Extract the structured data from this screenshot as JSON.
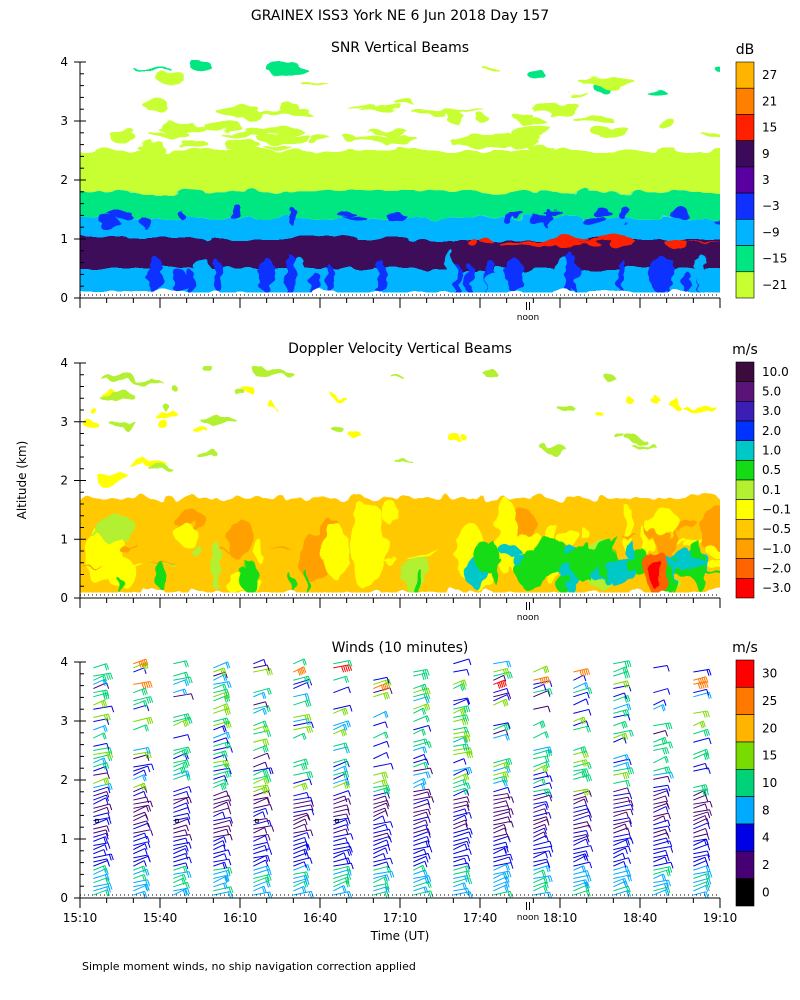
{
  "figure": {
    "title": "GRAINEX ISS3 York NE   6 Jun 2018 Day 157",
    "ylabel": "Altitude (km)",
    "xlabel": "Time (UT)",
    "footnote": "Simple moment winds, no ship navigation correction applied",
    "noon_label": "noon"
  },
  "chart_data": [
    {
      "id": "snr",
      "type": "heatmap",
      "title": "SNR Vertical Beams",
      "xlabel": "Time (UT)",
      "ylabel": "Altitude (km)",
      "xlim": [
        "15:10",
        "19:10"
      ],
      "ylim": [
        0,
        4
      ],
      "yticks": [
        "0",
        "1",
        "2",
        "3",
        "4"
      ],
      "colorbar": {
        "unit": "dB",
        "labels": [
          "27",
          "21",
          "15",
          "9",
          "3",
          "−3",
          "−9",
          "−15",
          "−21"
        ],
        "colors": [
          "#ffb400",
          "#ff8000",
          "#ff2000",
          "#3c0a5a",
          "#5a00a0",
          "#1030ff",
          "#00b4ff",
          "#00e680",
          "#c8ff32"
        ]
      },
      "layers": [
        {
          "range_km": [
            0.1,
            0.5
          ],
          "color": "#00b4ff",
          "note": "near-surface"
        },
        {
          "range_km": [
            0.3,
            1.0
          ],
          "color": "#3c0a5a",
          "note": "strong return, red streaks 1.0 km after 17:40"
        },
        {
          "range_km": [
            1.0,
            1.35
          ],
          "color": "#00b4ff"
        },
        {
          "range_km": [
            1.35,
            1.8
          ],
          "color": "#00e680"
        },
        {
          "range_km": [
            1.8,
            2.5
          ],
          "color": "#c8ff32",
          "note": "patchy"
        }
      ]
    },
    {
      "id": "doppler",
      "type": "heatmap",
      "title": "Doppler Velocity Vertical Beams",
      "xlabel": "Time (UT)",
      "ylabel": "Altitude (km)",
      "xlim": [
        "15:10",
        "19:10"
      ],
      "ylim": [
        0,
        4
      ],
      "yticks": [
        "0",
        "1",
        "2",
        "3",
        "4"
      ],
      "colorbar": {
        "unit": "m/s",
        "labels": [
          "10.0",
          "5.0",
          "3.0",
          "2.0",
          "1.0",
          "0.5",
          "0.1",
          "−0.1",
          "−0.5",
          "−1.0",
          "−2.0",
          "−3.0"
        ],
        "colors": [
          "#3c0a3c",
          "#5a1478",
          "#3c1eb4",
          "#0032ff",
          "#00c8c8",
          "#14dc14",
          "#b4f032",
          "#ffff00",
          "#ffc800",
          "#ffa000",
          "#ff6400",
          "#ff0000"
        ]
      },
      "layers": [
        {
          "range_km": [
            0.1,
            1.7
          ],
          "color": "#ffc800",
          "note": "mostly weak downward, green patches after 17:40"
        },
        {
          "range_km": [
            1.7,
            2.5
          ],
          "color": "#b4f032",
          "note": "patchy"
        }
      ]
    },
    {
      "id": "winds",
      "type": "wind_barbs",
      "title": "Winds (10 minutes)",
      "xlabel": "Time (UT)",
      "ylabel": "Altitude (km)",
      "xlim": [
        "15:10",
        "19:10"
      ],
      "ylim": [
        0,
        4
      ],
      "yticks": [
        "0",
        "1",
        "2",
        "3",
        "4"
      ],
      "xticks": [
        "15:10",
        "15:40",
        "16:10",
        "16:40",
        "17:10",
        "17:40",
        "18:10",
        "18:40",
        "19:10"
      ],
      "colorbar": {
        "unit": "m/s",
        "labels": [
          "30",
          "25",
          "20",
          "15",
          "10",
          "8",
          "4",
          "2",
          "0"
        ],
        "colors": [
          "#ff0000",
          "#ff7800",
          "#ffb400",
          "#78dc00",
          "#00d278",
          "#00aaff",
          "#0000e6",
          "#460073",
          "#000000"
        ]
      },
      "profile_times": [
        "15:15",
        "15:30",
        "15:45",
        "16:00",
        "16:15",
        "16:30",
        "16:45",
        "17:00",
        "17:15",
        "17:30",
        "17:45",
        "18:00",
        "18:15",
        "18:30",
        "18:45",
        "19:00"
      ]
    }
  ]
}
